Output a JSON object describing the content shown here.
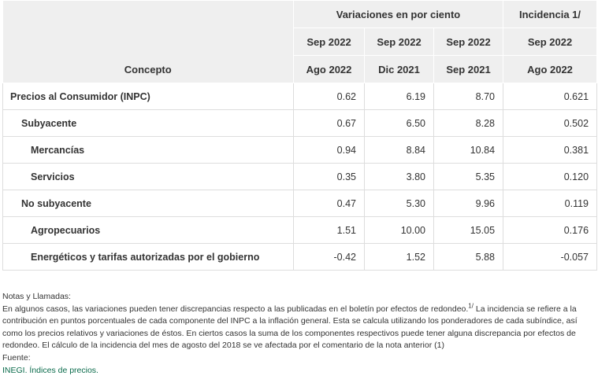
{
  "table": {
    "header": {
      "concept": "Concepto",
      "group_variations": "Variaciones en por ciento",
      "group_incidence": "Incidencia 1/",
      "from": [
        "Sep 2022",
        "Sep 2022",
        "Sep 2022",
        "Sep 2022"
      ],
      "to": [
        "Ago 2022",
        "Dic 2021",
        "Sep 2021",
        "Ago 2022"
      ]
    },
    "rows": [
      [
        "Precios al Consumidor (INPC)",
        "0.62",
        "6.19",
        "8.70",
        "0.621"
      ],
      [
        "Subyacente",
        "0.67",
        "6.50",
        "8.28",
        "0.502"
      ],
      [
        "Mercancías",
        "0.94",
        "8.84",
        "10.84",
        "0.381"
      ],
      [
        "Servicios",
        "0.35",
        "3.80",
        "5.35",
        "0.120"
      ],
      [
        "No subyacente",
        "0.47",
        "5.30",
        "9.96",
        "0.119"
      ],
      [
        "Agropecuarios",
        "1.51",
        "10.00",
        "15.05",
        "0.176"
      ],
      [
        "Energéticos y tarifas autorizadas por el gobierno",
        "-0.42",
        "1.52",
        "5.88",
        "-0.057"
      ]
    ]
  },
  "notes": {
    "title": "Notas y Llamadas:",
    "text_before": "En algunos casos, las variaciones pueden tener discrepancias respecto a las publicadas en el boletín por efectos de redondeo.",
    "superscript": "1/",
    "text_after": " La incidencia se refiere a la contribución en puntos porcentuales de cada componente del INPC a la inflación general. Esta se calcula utilizando los ponderadores de cada subíndice, así como los precios relativos y variaciones de éstos. En ciertos casos la suma de los componentes respectivos puede tener alguna discrepancia por efectos de redondeo. El cálculo de la incidencia del mes de agosto del 2018 se ve afectada por el comentario de la nota anterior (1)",
    "source_label": "Fuente:",
    "source_link": "INEGI. Índices de precios."
  }
}
